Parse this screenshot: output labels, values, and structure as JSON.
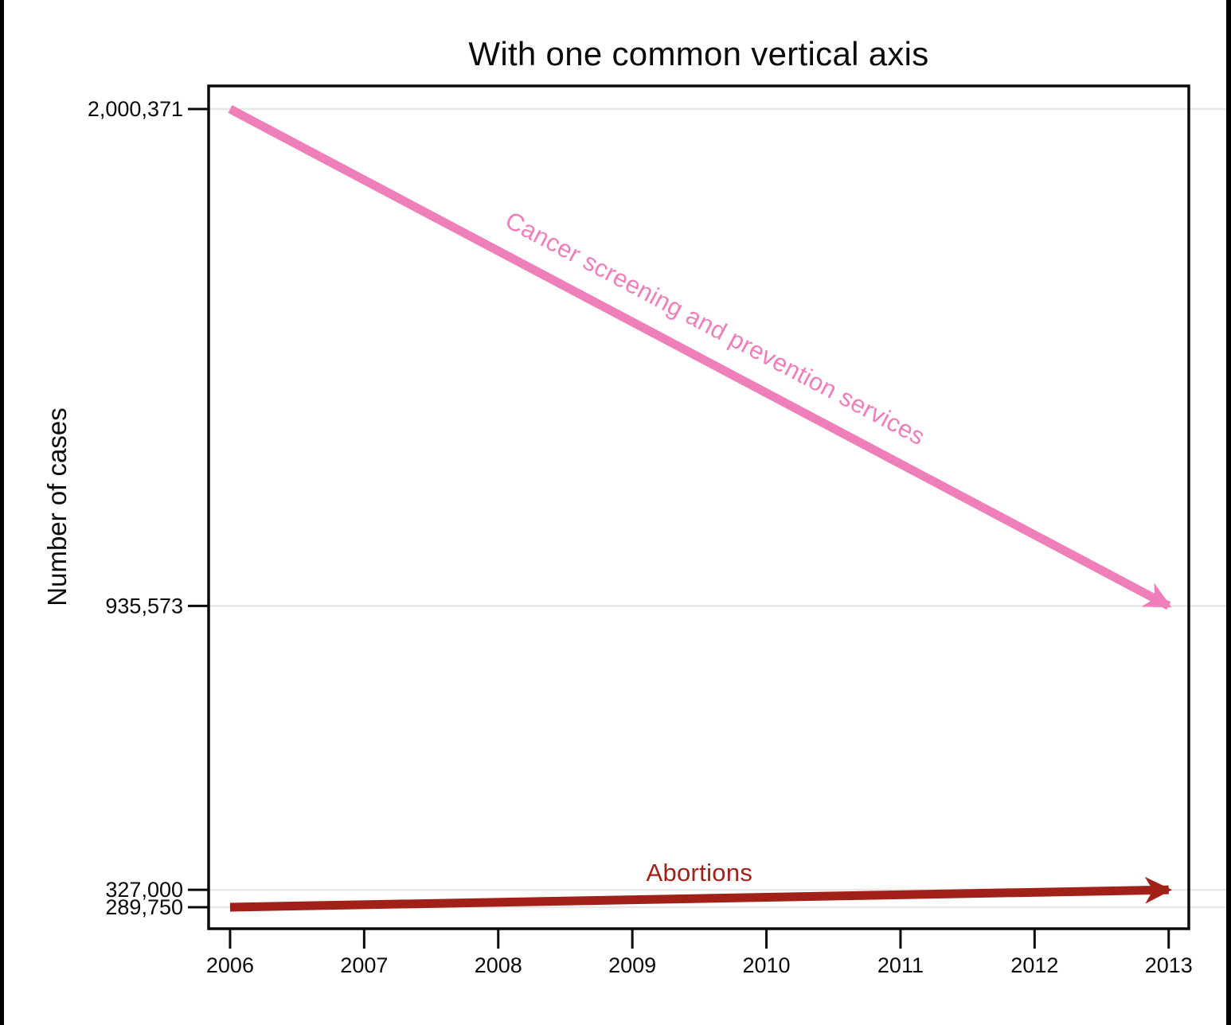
{
  "frame": {
    "left_bar_color": "#000000",
    "right_bar_color": "#000000",
    "background": "#ffffff"
  },
  "chart_data": {
    "type": "line",
    "title": "With one common vertical axis",
    "ylabel": "Number of cases",
    "xlabel": "",
    "grid": true,
    "grid_color": "#e7e7e7",
    "axis_color": "#0a0a0a",
    "legend_position": "inline-labels",
    "xlim": [
      2005.84,
      2013.15
    ],
    "ylim": [
      243700,
      2049800
    ],
    "x_ticks": [
      {
        "value": 2006,
        "label": "2006"
      },
      {
        "value": 2007,
        "label": "2007"
      },
      {
        "value": 2008,
        "label": "2008"
      },
      {
        "value": 2009,
        "label": "2009"
      },
      {
        "value": 2010,
        "label": "2010"
      },
      {
        "value": 2011,
        "label": "2011"
      },
      {
        "value": 2012,
        "label": "2012"
      },
      {
        "value": 2013,
        "label": "2013"
      }
    ],
    "y_ticks": [
      {
        "value": 2000371,
        "label": "2,000,371"
      },
      {
        "value": 935573,
        "label": "935,573"
      },
      {
        "value": 327000,
        "label": "327,000"
      },
      {
        "value": 289750,
        "label": "289,750"
      }
    ],
    "series": [
      {
        "name": "Cancer screening and prevention services",
        "color": "#ee7fb9",
        "arrow_end": true,
        "points": [
          {
            "x": 2006,
            "y": 2000371
          },
          {
            "x": 2013,
            "y": 935573
          }
        ]
      },
      {
        "name": "Abortions",
        "color": "#a12118",
        "arrow_end": true,
        "points": [
          {
            "x": 2006,
            "y": 289750
          },
          {
            "x": 2013,
            "y": 327000
          }
        ]
      }
    ]
  }
}
